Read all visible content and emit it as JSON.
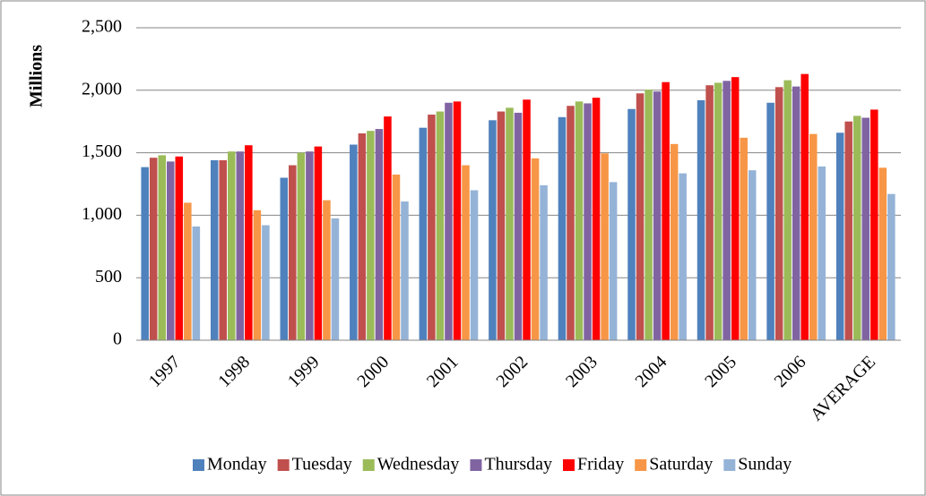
{
  "chart_data": {
    "type": "bar",
    "y_label": "Millions",
    "categories": [
      "1997",
      "1998",
      "1999",
      "2000",
      "2001",
      "2002",
      "2003",
      "2004",
      "2005",
      "2006",
      "AVERAGE"
    ],
    "series": [
      {
        "name": "Monday",
        "color": "#4f81bd",
        "values": [
          1385,
          1440,
          1300,
          1565,
          1700,
          1760,
          1785,
          1850,
          1920,
          1900,
          1660
        ]
      },
      {
        "name": "Tuesday",
        "color": "#c0504d",
        "values": [
          1460,
          1440,
          1400,
          1655,
          1805,
          1830,
          1875,
          1975,
          2040,
          2025,
          1750
        ]
      },
      {
        "name": "Wednesday",
        "color": "#9bbb59",
        "values": [
          1480,
          1510,
          1500,
          1675,
          1830,
          1860,
          1910,
          2005,
          2060,
          2080,
          1795
        ]
      },
      {
        "name": "Thursday",
        "color": "#8064a2",
        "values": [
          1430,
          1510,
          1510,
          1690,
          1900,
          1820,
          1895,
          1990,
          2075,
          2030,
          1780
        ]
      },
      {
        "name": "Friday",
        "color": "#ff0000",
        "values": [
          1470,
          1560,
          1550,
          1790,
          1910,
          1925,
          1940,
          2065,
          2105,
          2130,
          1845
        ]
      },
      {
        "name": "Saturday",
        "color": "#f79646",
        "values": [
          1100,
          1040,
          1120,
          1325,
          1400,
          1455,
          1495,
          1570,
          1620,
          1650,
          1380
        ]
      },
      {
        "name": "Sunday",
        "color": "#95b3d7",
        "values": [
          910,
          920,
          975,
          1110,
          1200,
          1240,
          1265,
          1335,
          1360,
          1390,
          1170
        ]
      }
    ],
    "ylim": [
      0,
      2500
    ],
    "yticks": [
      0,
      500,
      {
        "value": 1000,
        "label": "1,000"
      },
      {
        "value": 1500,
        "label": "1,500"
      },
      {
        "value": 2000,
        "label": "2,000"
      },
      {
        "value": 2500,
        "label": "2,500"
      }
    ],
    "grid": true
  }
}
